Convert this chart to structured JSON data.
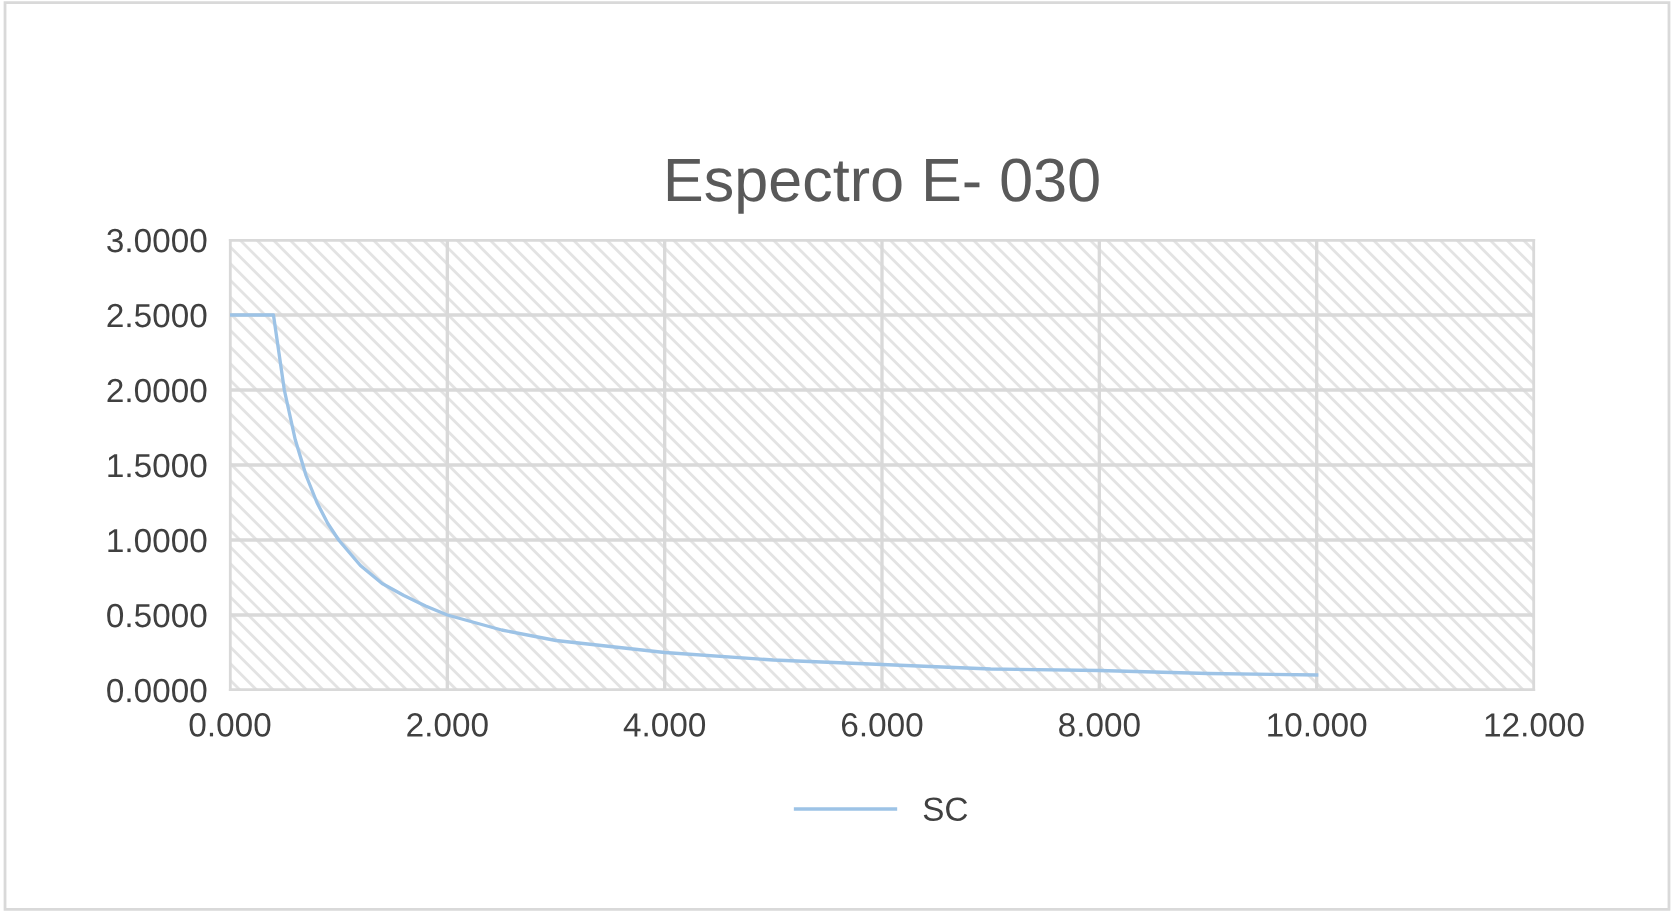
{
  "chart_data": {
    "type": "line",
    "title": "Espectro E- 030",
    "series": [
      {
        "name": "SC",
        "color": "#9dc3e6",
        "x": [
          0,
          0.1,
          0.2,
          0.3,
          0.4,
          0.5,
          0.6,
          0.7,
          0.8,
          0.9,
          1.0,
          1.2,
          1.4,
          1.6,
          1.8,
          2.0,
          2.5,
          3.0,
          3.5,
          4.0,
          5.0,
          6.0,
          7.0,
          8.0,
          9.0,
          10.0
        ],
        "values": [
          2.5,
          2.5,
          2.5,
          2.5,
          2.5,
          2.0,
          1.67,
          1.43,
          1.25,
          1.11,
          1.0,
          0.83,
          0.71,
          0.63,
          0.56,
          0.5,
          0.4,
          0.33,
          0.29,
          0.25,
          0.2,
          0.17,
          0.14,
          0.13,
          0.11,
          0.1
        ]
      }
    ],
    "xlim": [
      0,
      12
    ],
    "ylim": [
      0,
      3
    ],
    "xticks": [
      {
        "value": 0,
        "label": "0.000"
      },
      {
        "value": 2,
        "label": "2.000"
      },
      {
        "value": 4,
        "label": "4.000"
      },
      {
        "value": 6,
        "label": "6.000"
      },
      {
        "value": 8,
        "label": "8.000"
      },
      {
        "value": 10,
        "label": "10.000"
      },
      {
        "value": 12,
        "label": "12.000"
      }
    ],
    "yticks": [
      {
        "value": 0,
        "label": "0.0000"
      },
      {
        "value": 0.5,
        "label": "0.5000"
      },
      {
        "value": 1,
        "label": "1.0000"
      },
      {
        "value": 1.5,
        "label": "1.5000"
      },
      {
        "value": 2,
        "label": "2.0000"
      },
      {
        "value": 2.5,
        "label": "2.5000"
      },
      {
        "value": 3,
        "label": "3.0000"
      }
    ],
    "grid": true,
    "legend": "bottom",
    "marker": "none",
    "line_style": "solid"
  }
}
